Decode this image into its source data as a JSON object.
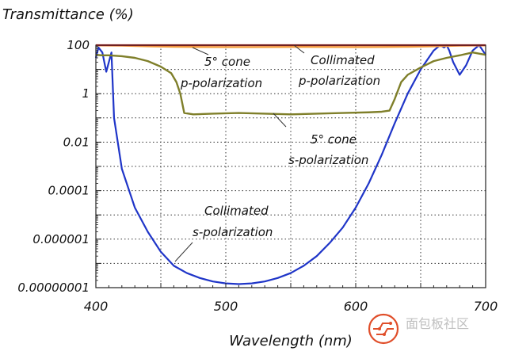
{
  "chart_data": {
    "type": "line",
    "title": "Transmittance (%)",
    "xlabel": "Wavelength (nm)",
    "ylabel": "Transmittance (%)",
    "xlim": [
      400,
      700
    ],
    "ylim": [
      1e-08,
      100
    ],
    "yscale": "log",
    "grid": true,
    "xticks": [
      400,
      500,
      600,
      700
    ],
    "xtick_labels": [
      "400",
      "500",
      "600",
      "700"
    ],
    "yticks": [
      100,
      1,
      0.01,
      0.0001,
      1e-06,
      1e-08
    ],
    "ytick_labels": [
      "100",
      "1",
      "0.01",
      "0.0001",
      "0.000001",
      "0.00000001"
    ],
    "series": [
      {
        "name": "Collimated p-polarization",
        "color": "#e82020",
        "x": [
          400,
          450,
          500,
          550,
          600,
          650,
          700
        ],
        "y": [
          100,
          100,
          100,
          100,
          100,
          100,
          100
        ]
      },
      {
        "name": "5° cone p-polarization",
        "color": "#f2a040",
        "x": [
          400,
          420,
          440,
          460,
          480,
          500,
          520,
          540,
          560,
          580,
          600,
          620,
          640,
          660,
          680,
          700
        ],
        "y": [
          98,
          96,
          90,
          86,
          84,
          83,
          83,
          84,
          85,
          84,
          83,
          84,
          86,
          90,
          96,
          98
        ]
      },
      {
        "name": "5° cone s-polarization",
        "color": "#7f7f2a",
        "x": [
          400,
          405,
          410,
          420,
          430,
          440,
          450,
          458,
          462,
          465,
          468,
          475,
          490,
          510,
          530,
          550,
          570,
          590,
          610,
          620,
          626,
          630,
          635,
          640,
          650,
          660,
          670,
          680,
          690,
          700
        ],
        "y": [
          40,
          38,
          38,
          35,
          30,
          22,
          13,
          7,
          3,
          1,
          0.16,
          0.14,
          0.15,
          0.16,
          0.15,
          0.14,
          0.15,
          0.16,
          0.17,
          0.18,
          0.2,
          0.6,
          3,
          6,
          12,
          22,
          30,
          38,
          50,
          40
        ]
      },
      {
        "name": "Collimated s-polarization",
        "color": "#1f35c8",
        "x": [
          400,
          402,
          405,
          408,
          410,
          412,
          414,
          416,
          420,
          430,
          440,
          450,
          460,
          470,
          480,
          490,
          500,
          510,
          520,
          530,
          540,
          550,
          560,
          570,
          580,
          590,
          600,
          610,
          620,
          630,
          640,
          650,
          660,
          665,
          668,
          670,
          672,
          675,
          680,
          685,
          690,
          695,
          700
        ],
        "y": [
          30,
          80,
          50,
          8,
          20,
          50,
          0.1,
          0.02,
          0.0008,
          2e-05,
          2e-06,
          3e-07,
          8e-08,
          4e-08,
          2.5e-08,
          1.8e-08,
          1.5e-08,
          1.4e-08,
          1.5e-08,
          1.8e-08,
          2.5e-08,
          4e-08,
          8e-08,
          2e-07,
          7e-07,
          3e-06,
          2e-05,
          0.0002,
          0.003,
          0.06,
          1,
          10,
          60,
          100,
          80,
          200,
          60,
          20,
          6,
          15,
          60,
          150,
          40
        ]
      }
    ],
    "annotations": [
      {
        "lines": [
          "5° cone",
          "p-polarization"
        ]
      },
      {
        "lines": [
          "Collimated",
          "p-polarization"
        ]
      },
      {
        "lines": [
          "5° cone",
          "s-polarization"
        ]
      },
      {
        "lines": [
          "Collimated",
          "s-polarization"
        ]
      }
    ]
  },
  "watermark": {
    "text": "面包板社区",
    "icon": "circuit-logo-icon"
  }
}
